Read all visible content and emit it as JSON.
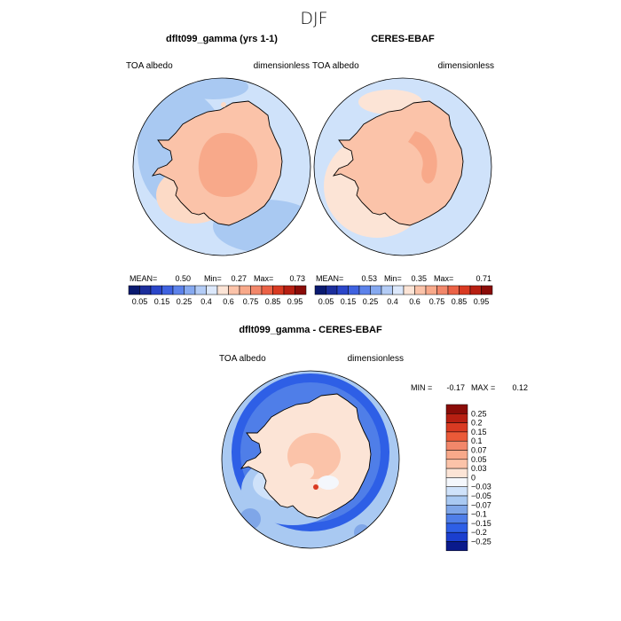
{
  "page": {
    "title": "DJF",
    "colors": {
      "land_high": "#F8A98A",
      "land_mid": "#FBC3A9",
      "land_low": "#FCDAC6",
      "near_zero": "#F4F7FC",
      "ocean_light": "#CFE2FA",
      "ocean_mid": "#A9C9F2",
      "ocean_deep": "#7FA6E8",
      "diff_blue": "#2E5FE6",
      "coast": "#000000"
    }
  },
  "chart_data": [
    {
      "type": "heatmap",
      "projection": "south-polar-stereographic",
      "title": "dflt099_gamma (yrs 1-1)",
      "variable": "TOA albedo",
      "units": "dimensionless",
      "stats": {
        "mean_label": "MEAN=",
        "mean": "0.50",
        "min_label": "Min=",
        "min": "0.27",
        "max_label": "Max=",
        "max": "0.73"
      },
      "colorbar": {
        "orientation": "horizontal",
        "ticks": [
          "0.05",
          "0.15",
          "0.25",
          "0.4",
          "0.6",
          "0.75",
          "0.85",
          "0.95"
        ],
        "colors": [
          "#0A1A70",
          "#1C2E9C",
          "#2B46C9",
          "#3F62E0",
          "#5C82EA",
          "#86A9F0",
          "#B3CCF6",
          "#DCE8FB",
          "#FCE4D6",
          "#FBC3A9",
          "#F8A98A",
          "#F2876A",
          "#EB6246",
          "#D93A22",
          "#B71F12",
          "#8A0C08"
        ]
      }
    },
    {
      "type": "heatmap",
      "projection": "south-polar-stereographic",
      "title": "CERES-EBAF",
      "variable": "TOA albedo",
      "units": "dimensionless",
      "stats": {
        "mean_label": "MEAN=",
        "mean": "0.53",
        "min_label": "Min=",
        "min": "0.35",
        "max_label": "Max=",
        "max": "0.71"
      },
      "colorbar": {
        "orientation": "horizontal",
        "ticks": [
          "0.05",
          "0.15",
          "0.25",
          "0.4",
          "0.6",
          "0.75",
          "0.85",
          "0.95"
        ],
        "colors": [
          "#0A1A70",
          "#1C2E9C",
          "#2B46C9",
          "#3F62E0",
          "#5C82EA",
          "#86A9F0",
          "#B3CCF6",
          "#DCE8FB",
          "#FCE4D6",
          "#FBC3A9",
          "#F8A98A",
          "#F2876A",
          "#EB6246",
          "#D93A22",
          "#B71F12",
          "#8A0C08"
        ]
      }
    },
    {
      "type": "heatmap",
      "projection": "south-polar-stereographic",
      "title": "dflt099_gamma - CERES-EBAF",
      "variable": "TOA albedo",
      "units": "dimensionless",
      "stats": {
        "min_label": "MIN =",
        "min": "-0.17",
        "max_label": "MAX =",
        "max": "0.12"
      },
      "colorbar": {
        "orientation": "vertical",
        "ticks": [
          "0.25",
          "0.2",
          "0.15",
          "0.1",
          "0.07",
          "0.05",
          "0.03",
          "0",
          "−0.03",
          "−0.05",
          "−0.07",
          "−0.1",
          "−0.15",
          "−0.2",
          "−0.25"
        ],
        "colors": [
          "#8A0C08",
          "#B71F12",
          "#D93A22",
          "#EB5A38",
          "#F2876A",
          "#F8A98A",
          "#FBC3A9",
          "#FCE4D6",
          "#F4F7FC",
          "#CFE2FA",
          "#A9C9F2",
          "#7FA6E8",
          "#4F7EE8",
          "#2E5FE6",
          "#1B3FCF",
          "#0A1A8C"
        ]
      }
    }
  ]
}
